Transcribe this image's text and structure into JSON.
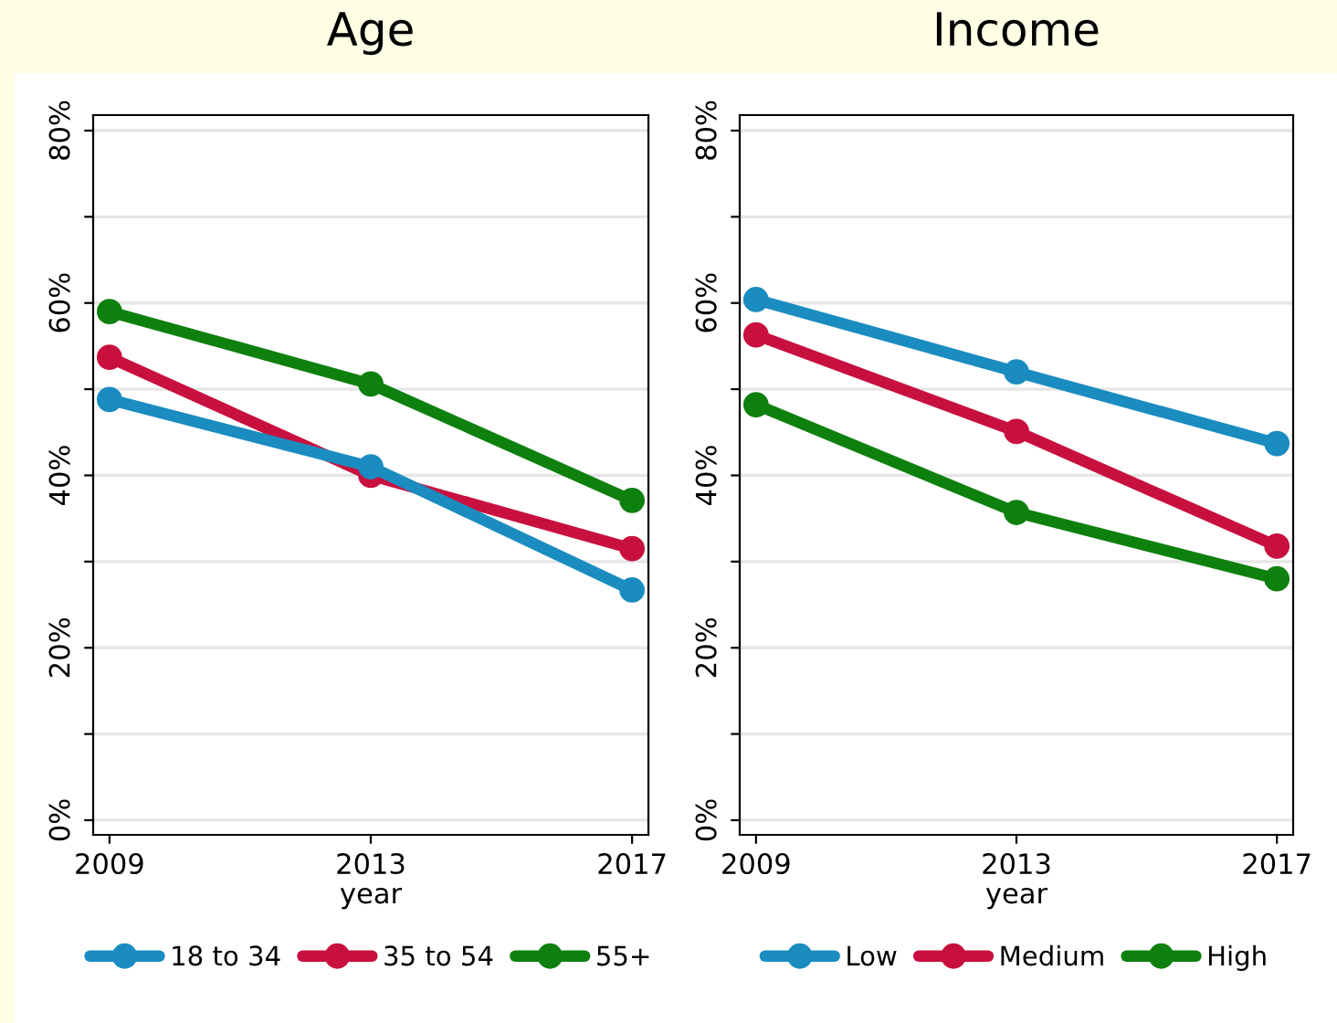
{
  "chart_data": [
    {
      "type": "line",
      "title": "Age",
      "xlabel": "year",
      "x": [
        2009,
        2013,
        2017
      ],
      "xlim": [
        2008.75,
        2017.25
      ],
      "xticks": [
        2009,
        2013,
        2017
      ],
      "ylim": [
        -1.7,
        81.8
      ],
      "yticks": [
        {
          "value": 0,
          "label": "0%"
        },
        {
          "value": 10,
          "label": null
        },
        {
          "value": 20,
          "label": "20%"
        },
        {
          "value": 30,
          "label": null
        },
        {
          "value": 40,
          "label": "40%"
        },
        {
          "value": 50,
          "label": null
        },
        {
          "value": 60,
          "label": "60%"
        },
        {
          "value": 70,
          "label": null
        },
        {
          "value": 80,
          "label": "80%"
        }
      ],
      "grid": "y",
      "legend": "bottom",
      "marker": "circle",
      "line_style": "solid",
      "series": [
        {
          "name": "18 to 34",
          "color": "#1a8cc0",
          "values": [
            48.8,
            41.0,
            26.7
          ]
        },
        {
          "name": "35 to 54",
          "color": "#c8103e",
          "values": [
            53.7,
            40.0,
            31.5
          ]
        },
        {
          "name": "55+",
          "color": "#0e800e",
          "values": [
            59.0,
            50.6,
            37.1
          ]
        }
      ]
    },
    {
      "type": "line",
      "title": "Income",
      "xlabel": "year",
      "x": [
        2009,
        2013,
        2017
      ],
      "xlim": [
        2008.75,
        2017.25
      ],
      "xticks": [
        2009,
        2013,
        2017
      ],
      "ylim": [
        -1.7,
        81.8
      ],
      "yticks": [
        {
          "value": 0,
          "label": "0%"
        },
        {
          "value": 10,
          "label": null
        },
        {
          "value": 20,
          "label": "20%"
        },
        {
          "value": 30,
          "label": null
        },
        {
          "value": 40,
          "label": "40%"
        },
        {
          "value": 50,
          "label": null
        },
        {
          "value": 60,
          "label": "60%"
        },
        {
          "value": 70,
          "label": null
        },
        {
          "value": 80,
          "label": "80%"
        }
      ],
      "grid": "y",
      "legend": "bottom",
      "marker": "circle",
      "line_style": "solid",
      "series": [
        {
          "name": "Low",
          "color": "#1a8cc0",
          "values": [
            60.4,
            52.0,
            43.7
          ]
        },
        {
          "name": "Medium",
          "color": "#c8103e",
          "values": [
            56.3,
            45.1,
            31.8
          ]
        },
        {
          "name": "High",
          "color": "#0e800e",
          "values": [
            48.2,
            35.7,
            28.0
          ]
        }
      ]
    }
  ]
}
